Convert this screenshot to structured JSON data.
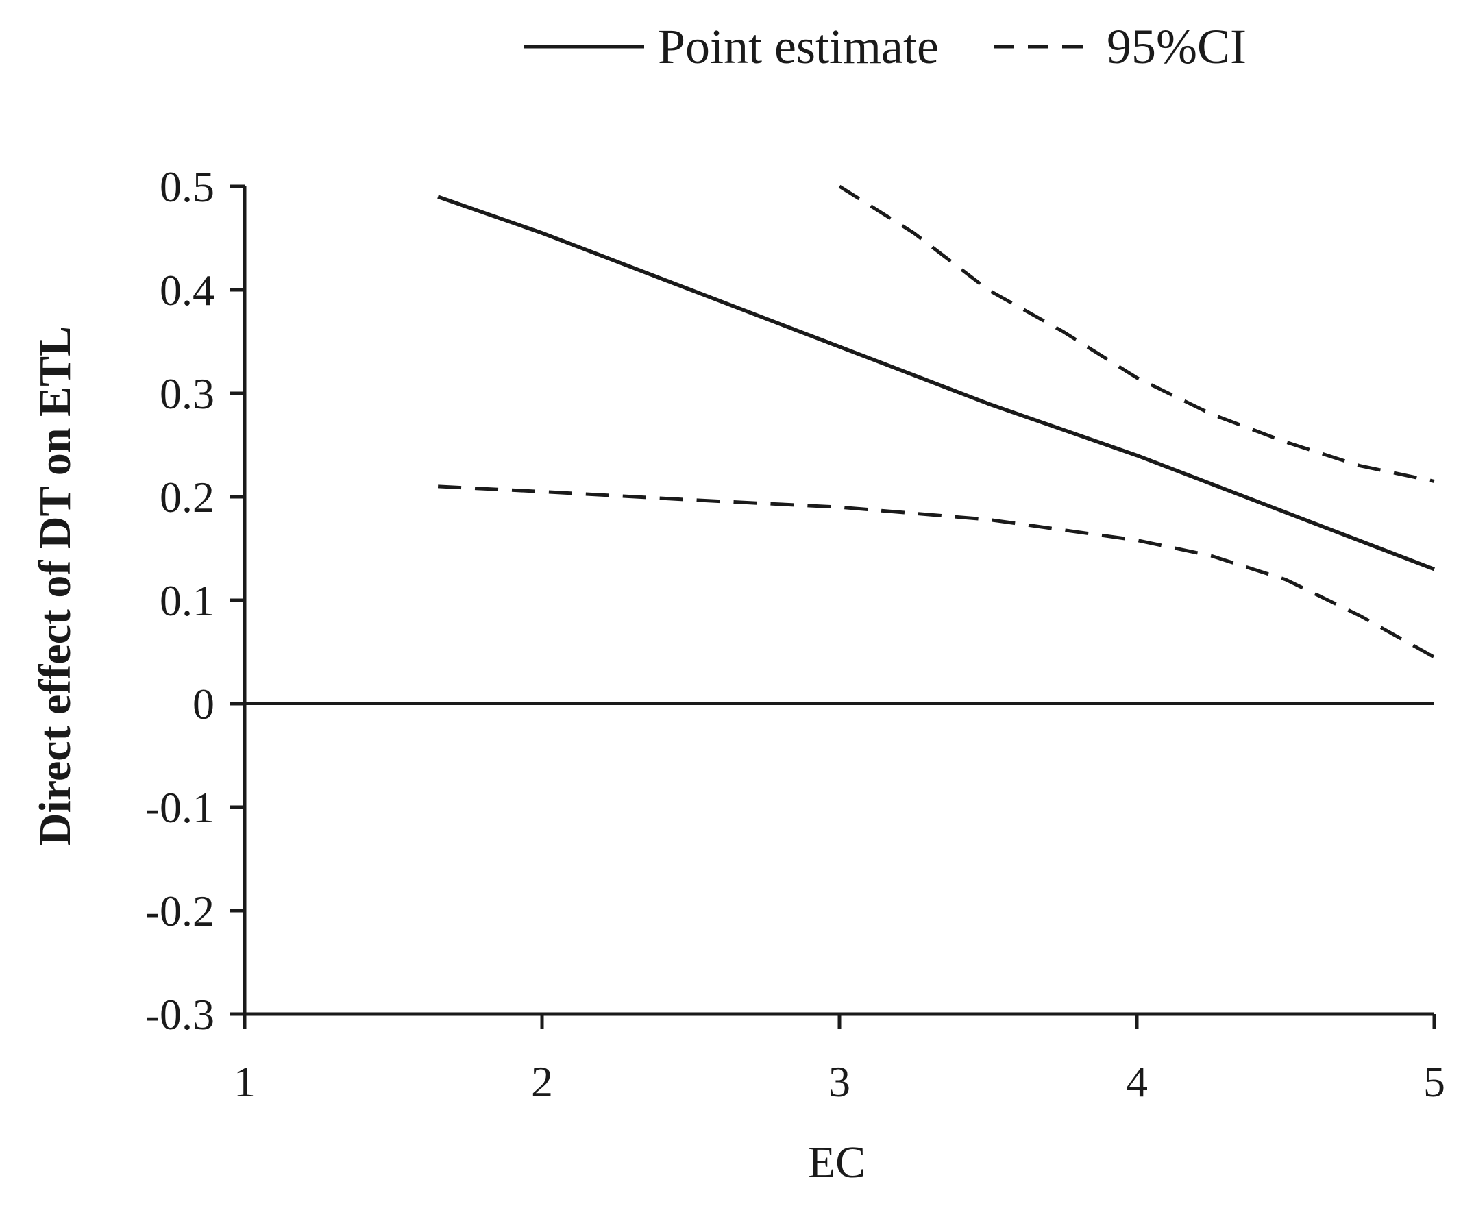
{
  "chart_data": {
    "type": "line",
    "title": "",
    "xlabel": "EC",
    "ylabel": "Direct effect of DT on ETL",
    "xlim": [
      1,
      5
    ],
    "ylim": [
      -0.3,
      0.5
    ],
    "x_ticks": [
      1,
      2,
      3,
      4,
      5
    ],
    "y_ticks": [
      -0.3,
      -0.2,
      -0.1,
      0,
      0.1,
      0.2,
      0.3,
      0.4,
      0.5
    ],
    "x_tick_labels": [
      "1",
      "2",
      "3",
      "4",
      "5"
    ],
    "y_tick_labels": [
      "-0.3",
      "-0.2",
      "-0.1",
      "0",
      "0.1",
      "0.2",
      "0.3",
      "0.4",
      "0.5"
    ],
    "grid": false,
    "legend_position": "top",
    "reference_line_y": 0,
    "series": [
      {
        "name": "Point estimate",
        "style": "solid",
        "x": [
          1.65,
          2.0,
          2.5,
          3.0,
          3.5,
          4.0,
          4.5,
          5.0
        ],
        "y": [
          0.49,
          0.455,
          0.4,
          0.345,
          0.29,
          0.24,
          0.185,
          0.13
        ]
      },
      {
        "name": "95%CI",
        "style": "dashed",
        "bound": "upper",
        "x": [
          3.0,
          3.25,
          3.5,
          3.75,
          4.0,
          4.25,
          4.5,
          4.75,
          5.0
        ],
        "y": [
          0.5,
          0.455,
          0.4,
          0.36,
          0.315,
          0.28,
          0.253,
          0.23,
          0.215
        ]
      },
      {
        "name": "95%CI",
        "style": "dashed",
        "bound": "lower",
        "x": [
          1.65,
          2.0,
          2.5,
          3.0,
          3.5,
          4.0,
          4.25,
          4.5,
          4.75,
          5.0
        ],
        "y": [
          0.21,
          0.205,
          0.197,
          0.19,
          0.178,
          0.158,
          0.143,
          0.12,
          0.085,
          0.045
        ]
      }
    ],
    "legend": [
      {
        "label": "Point estimate",
        "style": "solid"
      },
      {
        "label": "95%CI",
        "style": "dashed"
      }
    ],
    "colors": {
      "line": "#1a1a1a",
      "background": "#ffffff"
    }
  }
}
